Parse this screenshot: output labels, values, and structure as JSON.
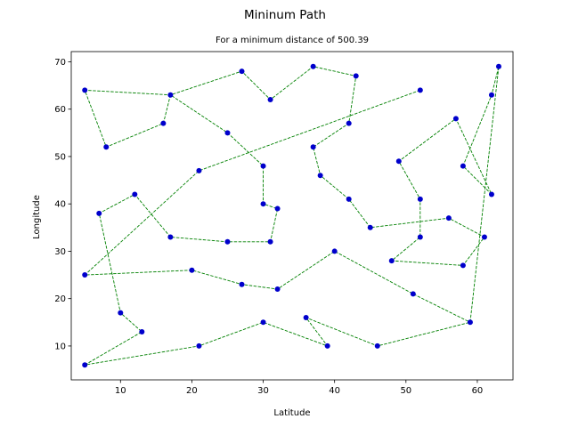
{
  "chart_data": {
    "type": "line",
    "title": "Mininum Path",
    "subtitle": "For a minimum distance of 500.39",
    "xlabel": "Latitude",
    "ylabel": "Longitude",
    "xlim": [
      3.1,
      65.0
    ],
    "ylim": [
      2.85,
      72.15
    ],
    "xticks": [
      10,
      20,
      30,
      40,
      50,
      60
    ],
    "yticks": [
      10,
      20,
      30,
      40,
      50,
      60,
      70
    ],
    "grid": false,
    "line_style": "dashed",
    "colors": {
      "line": "#008000",
      "marker": "#0000cc"
    },
    "route": [
      [
        5,
        6
      ],
      [
        13,
        13
      ],
      [
        10,
        17
      ],
      [
        7,
        38
      ],
      [
        12,
        42
      ],
      [
        17,
        33
      ],
      [
        25,
        32
      ],
      [
        31,
        32
      ],
      [
        32,
        39
      ],
      [
        30,
        40
      ],
      [
        30,
        48
      ],
      [
        25,
        55
      ],
      [
        17,
        63
      ],
      [
        16,
        57
      ],
      [
        8,
        52
      ],
      [
        5,
        64
      ],
      [
        17,
        63
      ],
      [
        27,
        68
      ],
      [
        31,
        62
      ],
      [
        37,
        69
      ],
      [
        43,
        67
      ],
      [
        42,
        57
      ],
      [
        37,
        52
      ],
      [
        38,
        46
      ],
      [
        42,
        41
      ],
      [
        45,
        35
      ],
      [
        56,
        37
      ],
      [
        61,
        33
      ],
      [
        58,
        27
      ],
      [
        48,
        28
      ],
      [
        52,
        33
      ],
      [
        52,
        41
      ],
      [
        49,
        49
      ],
      [
        57,
        58
      ],
      [
        62,
        42
      ],
      [
        58,
        48
      ],
      [
        62,
        63
      ],
      [
        63,
        69
      ],
      [
        59,
        15
      ],
      [
        46,
        10
      ],
      [
        36,
        16
      ],
      [
        39,
        10
      ],
      [
        30,
        15
      ],
      [
        21,
        10
      ],
      [
        5,
        6
      ]
    ],
    "extra_segments": [
      [
        [
          52,
          64
        ],
        [
          21,
          47
        ],
        [
          5,
          25
        ],
        [
          20,
          26
        ],
        [
          27,
          23
        ],
        [
          32,
          22
        ],
        [
          40,
          30
        ],
        [
          51,
          21
        ],
        [
          59,
          15
        ]
      ]
    ]
  }
}
